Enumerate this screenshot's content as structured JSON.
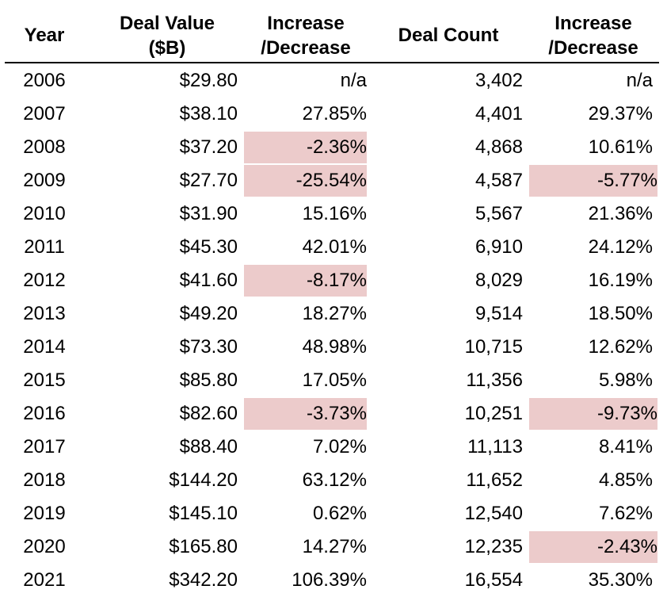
{
  "headers": {
    "year": "Year",
    "deal_value": [
      "Deal Value",
      "($B)"
    ],
    "deal_value_change": [
      "Increase",
      "/Decrease"
    ],
    "deal_count": "Deal Count",
    "deal_count_change": [
      "Increase",
      "/Decrease"
    ]
  },
  "highlight_color": "#eccbcb",
  "rows": [
    {
      "year": "2006",
      "deal_value": "$29.80",
      "deal_value_change": "n/a",
      "deal_count": "3,402",
      "deal_count_change": "n/a",
      "dv_neg": false,
      "dc_neg": false
    },
    {
      "year": "2007",
      "deal_value": "$38.10",
      "deal_value_change": "27.85%",
      "deal_count": "4,401",
      "deal_count_change": "29.37%",
      "dv_neg": false,
      "dc_neg": false
    },
    {
      "year": "2008",
      "deal_value": "$37.20",
      "deal_value_change": "-2.36%",
      "deal_count": "4,868",
      "deal_count_change": "10.61%",
      "dv_neg": true,
      "dc_neg": false
    },
    {
      "year": "2009",
      "deal_value": "$27.70",
      "deal_value_change": "-25.54%",
      "deal_count": "4,587",
      "deal_count_change": "-5.77%",
      "dv_neg": true,
      "dc_neg": true
    },
    {
      "year": "2010",
      "deal_value": "$31.90",
      "deal_value_change": "15.16%",
      "deal_count": "5,567",
      "deal_count_change": "21.36%",
      "dv_neg": false,
      "dc_neg": false
    },
    {
      "year": "2011",
      "deal_value": "$45.30",
      "deal_value_change": "42.01%",
      "deal_count": "6,910",
      "deal_count_change": "24.12%",
      "dv_neg": false,
      "dc_neg": false
    },
    {
      "year": "2012",
      "deal_value": "$41.60",
      "deal_value_change": "-8.17%",
      "deal_count": "8,029",
      "deal_count_change": "16.19%",
      "dv_neg": true,
      "dc_neg": false
    },
    {
      "year": "2013",
      "deal_value": "$49.20",
      "deal_value_change": "18.27%",
      "deal_count": "9,514",
      "deal_count_change": "18.50%",
      "dv_neg": false,
      "dc_neg": false
    },
    {
      "year": "2014",
      "deal_value": "$73.30",
      "deal_value_change": "48.98%",
      "deal_count": "10,715",
      "deal_count_change": "12.62%",
      "dv_neg": false,
      "dc_neg": false
    },
    {
      "year": "2015",
      "deal_value": "$85.80",
      "deal_value_change": "17.05%",
      "deal_count": "11,356",
      "deal_count_change": "5.98%",
      "dv_neg": false,
      "dc_neg": false
    },
    {
      "year": "2016",
      "deal_value": "$82.60",
      "deal_value_change": "-3.73%",
      "deal_count": "10,251",
      "deal_count_change": "-9.73%",
      "dv_neg": true,
      "dc_neg": true
    },
    {
      "year": "2017",
      "deal_value": "$88.40",
      "deal_value_change": "7.02%",
      "deal_count": "11,113",
      "deal_count_change": "8.41%",
      "dv_neg": false,
      "dc_neg": false
    },
    {
      "year": "2018",
      "deal_value": "$144.20",
      "deal_value_change": "63.12%",
      "deal_count": "11,652",
      "deal_count_change": "4.85%",
      "dv_neg": false,
      "dc_neg": false
    },
    {
      "year": "2019",
      "deal_value": "$145.10",
      "deal_value_change": "0.62%",
      "deal_count": "12,540",
      "deal_count_change": "7.62%",
      "dv_neg": false,
      "dc_neg": false
    },
    {
      "year": "2020",
      "deal_value": "$165.80",
      "deal_value_change": "14.27%",
      "deal_count": "12,235",
      "deal_count_change": "-2.43%",
      "dv_neg": false,
      "dc_neg": true
    },
    {
      "year": "2021",
      "deal_value": "$342.20",
      "deal_value_change": "106.39%",
      "deal_count": "16,554",
      "deal_count_change": "35.30%",
      "dv_neg": false,
      "dc_neg": false
    }
  ]
}
